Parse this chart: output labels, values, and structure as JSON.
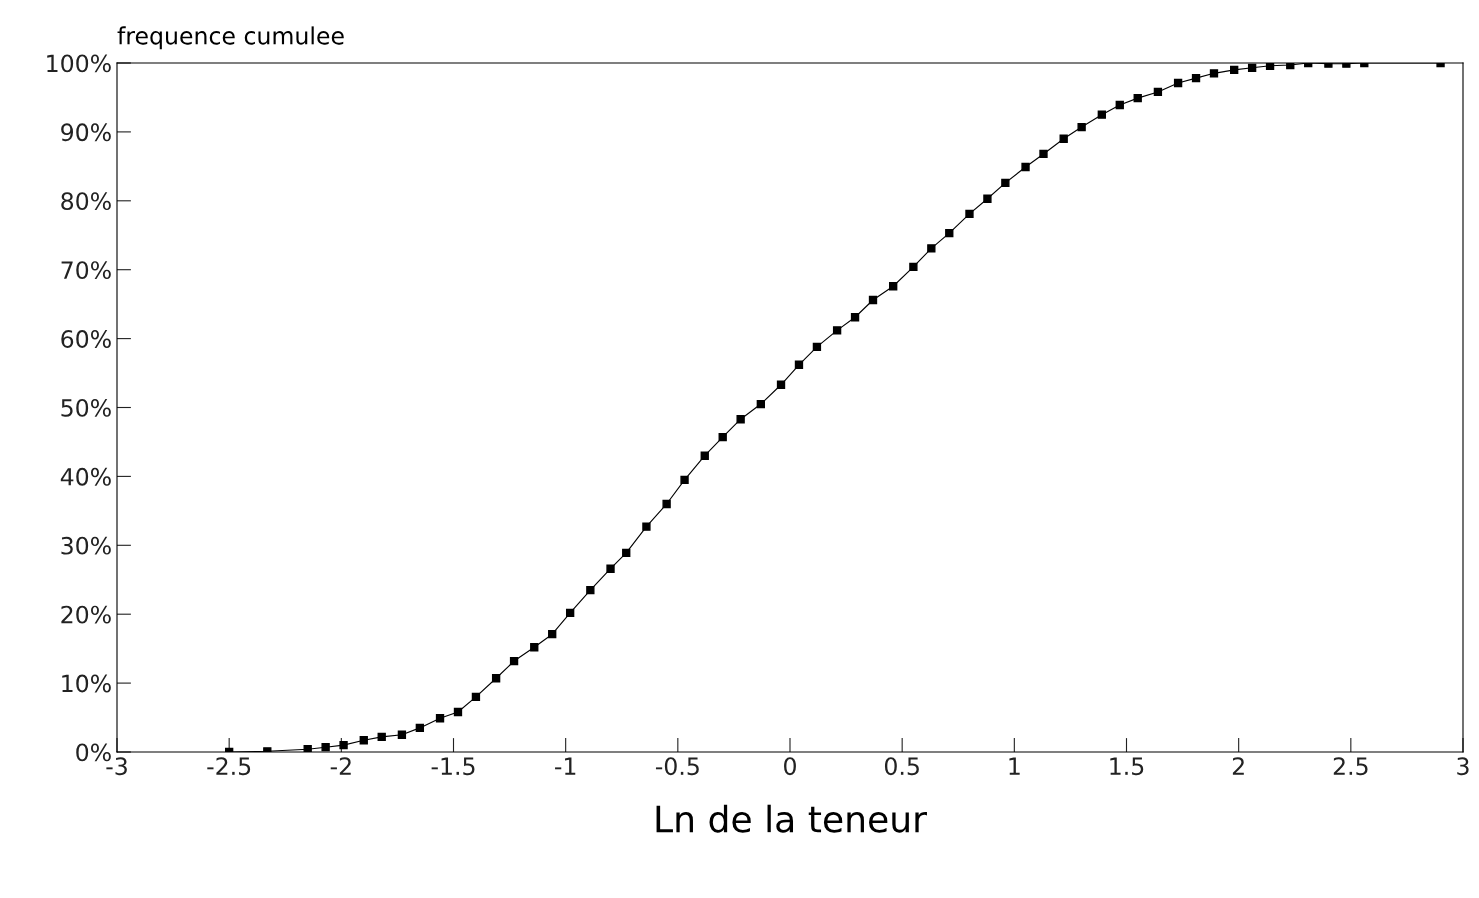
{
  "chart_data": {
    "type": "line",
    "ylabel": "frequence cumulee",
    "xlabel": "Ln de la teneur",
    "x": [
      -2.5,
      -2.33,
      -2.15,
      -2.07,
      -1.99,
      -1.9,
      -1.82,
      -1.73,
      -1.65,
      -1.56,
      -1.48,
      -1.4,
      -1.31,
      -1.23,
      -1.14,
      -1.06,
      -0.98,
      -0.89,
      -0.8,
      -0.73,
      -0.64,
      -0.55,
      -0.47,
      -0.38,
      -0.3,
      -0.22,
      -0.13,
      -0.04,
      0.04,
      0.12,
      0.21,
      0.29,
      0.37,
      0.46,
      0.55,
      0.63,
      0.71,
      0.8,
      0.88,
      0.96,
      1.05,
      1.13,
      1.22,
      1.3,
      1.39,
      1.47,
      1.55,
      1.64,
      1.73,
      1.81,
      1.89,
      1.98,
      2.06,
      2.14,
      2.23,
      2.31,
      2.4,
      2.48,
      2.56,
      2.9
    ],
    "series": [
      {
        "color": "#000000",
        "values": [
          0,
          0.1,
          0.4,
          0.7,
          1.0,
          1.7,
          2.2,
          2.5,
          3.5,
          4.9,
          5.8,
          8.0,
          10.7,
          13.2,
          15.2,
          17.1,
          20.2,
          23.5,
          26.6,
          28.9,
          32.7,
          36.0,
          39.5,
          43.0,
          45.7,
          48.3,
          50.5,
          53.3,
          56.2,
          58.8,
          61.2,
          63.1,
          65.6,
          67.6,
          70.4,
          73.1,
          75.3,
          78.1,
          80.3,
          82.6,
          84.9,
          86.8,
          89.0,
          90.7,
          92.5,
          93.9,
          94.9,
          95.8,
          97.1,
          97.8,
          98.5,
          99.0,
          99.3,
          99.6,
          99.7,
          100,
          99.9,
          99.9,
          100,
          100
        ]
      }
    ],
    "marker": "square",
    "line_style": "solid",
    "grid": false,
    "legend": false,
    "xlim": [
      -3,
      3
    ],
    "xticks": [
      -3,
      -2.5,
      -2,
      -1.5,
      -1,
      -0.5,
      0,
      0.5,
      1,
      1.5,
      2,
      2.5,
      3
    ],
    "ylim": [
      0,
      100
    ],
    "yticks": [
      {
        "value": 0,
        "label": "0%"
      },
      {
        "value": 10,
        "label": "10%"
      },
      {
        "value": 20,
        "label": "20%"
      },
      {
        "value": 30,
        "label": "30%"
      },
      {
        "value": 40,
        "label": "40%"
      },
      {
        "value": 50,
        "label": "50%"
      },
      {
        "value": 60,
        "label": "60%"
      },
      {
        "value": 70,
        "label": "70%"
      },
      {
        "value": 80,
        "label": "80%"
      },
      {
        "value": 90,
        "label": "90%"
      },
      {
        "value": 100,
        "label": "100%"
      }
    ]
  }
}
